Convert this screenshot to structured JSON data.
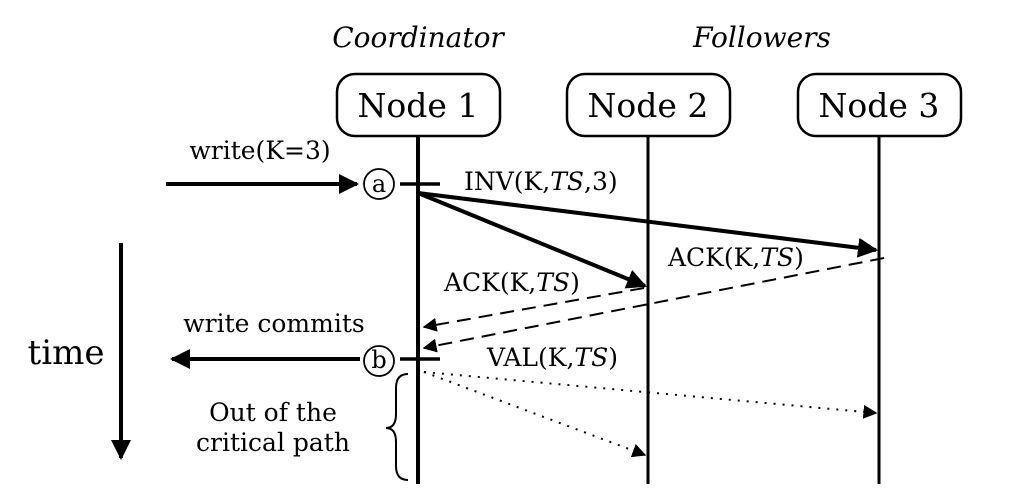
{
  "roles": {
    "coordinator": "Coordinator",
    "followers": "Followers"
  },
  "nodes": [
    {
      "label": "Node 1"
    },
    {
      "label": "Node 2"
    },
    {
      "label": "Node 3"
    }
  ],
  "client": {
    "write_request": "write(K=3)",
    "write_commits": "write commits"
  },
  "points": {
    "a": "a",
    "b": "b"
  },
  "messages": {
    "inv": {
      "prefix": "INV(K,",
      "ts": "TS",
      "suffix": ",3)"
    },
    "ack_node3": {
      "prefix": "ACK(K,",
      "ts": "TS",
      "suffix": ")"
    },
    "ack_node2": {
      "prefix": "ACK(K,",
      "ts": "TS",
      "suffix": ")"
    },
    "val": {
      "prefix": "VAL(K,",
      "ts": "TS",
      "suffix": ")"
    }
  },
  "annotation": {
    "line1": "Out of the",
    "line2": "critical path"
  },
  "time_axis": {
    "label": "time"
  }
}
